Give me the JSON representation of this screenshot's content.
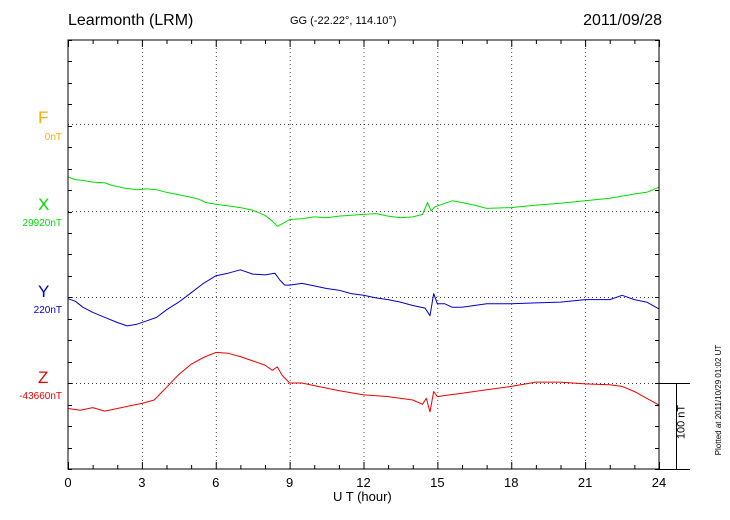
{
  "header": {
    "station": "Learmonth (LRM)",
    "coords": "GG (-22.22°, 114.10°)",
    "date": "2011/09/28"
  },
  "footnote": "Plotted at 2011/10/29 01:02 UT",
  "scale_bar_label": "100 nT",
  "colors": {
    "F": "#ffaa00",
    "X": "#00dd00",
    "Y": "#0000cc",
    "Z": "#ee0000",
    "grid": "#000000"
  },
  "chart_data": {
    "type": "line",
    "title": "Learmonth (LRM)",
    "xlabel": "U T (hour)",
    "ylabel": "",
    "xlim": [
      0,
      24
    ],
    "x_ticks": [
      0,
      3,
      6,
      9,
      12,
      15,
      18,
      21,
      24
    ],
    "x_tick_labels": [
      "0",
      "3",
      "6",
      "9",
      "12",
      "15",
      "18",
      "21",
      "24"
    ],
    "grid": true,
    "scale_bar_nT": 100,
    "series": [
      {
        "name": "F",
        "baseline_label": "0nT",
        "baseline_nT": 0,
        "values": []
      },
      {
        "name": "X",
        "baseline_label": "29920nT",
        "baseline_nT": 29920,
        "x": [
          0,
          0.3,
          0.6,
          1.0,
          1.5,
          1.8,
          2.3,
          2.8,
          3.2,
          3.6,
          4.0,
          4.5,
          5.0,
          5.3,
          5.6,
          6.0,
          6.5,
          7.0,
          7.5,
          8.0,
          8.3,
          8.5,
          8.7,
          9.0,
          9.5,
          10.0,
          10.5,
          11.0,
          11.5,
          12.0,
          12.5,
          13.0,
          13.5,
          14.0,
          14.4,
          14.6,
          14.75,
          14.9,
          15.2,
          15.6,
          16.0,
          16.5,
          17.0,
          18.0,
          19.0,
          20.0,
          21.0,
          22.0,
          23.0,
          23.5,
          24.0
        ],
        "values": [
          40,
          37,
          36,
          34,
          33,
          30,
          27,
          25,
          26,
          25,
          22,
          19,
          16,
          14,
          10,
          8,
          6,
          4,
          1,
          -5,
          -12,
          -18,
          -15,
          -10,
          -9,
          -7,
          -8,
          -6,
          -5,
          -4,
          -3,
          -6,
          -8,
          -7,
          -4,
          10,
          0,
          5,
          8,
          12,
          10,
          7,
          3,
          4,
          7,
          9,
          12,
          15,
          20,
          22,
          28
        ]
      },
      {
        "name": "Y",
        "baseline_label": "220nT",
        "baseline_nT": 220,
        "x": [
          0,
          0.3,
          0.6,
          1.0,
          1.5,
          2.0,
          2.4,
          2.8,
          3.2,
          3.6,
          4.0,
          4.5,
          5.0,
          5.5,
          6.0,
          6.5,
          7.0,
          7.5,
          8.0,
          8.4,
          8.6,
          8.8,
          9.0,
          9.5,
          10.0,
          10.5,
          11.0,
          11.5,
          12.0,
          12.5,
          13.0,
          13.5,
          14.0,
          14.5,
          14.7,
          14.85,
          15.0,
          15.3,
          15.6,
          16.0,
          16.5,
          17.0,
          18.0,
          19.0,
          20.0,
          21.0,
          22.0,
          22.5,
          23.0,
          23.5,
          24.0
        ],
        "values": [
          -2,
          -5,
          -12,
          -18,
          -24,
          -30,
          -34,
          -32,
          -28,
          -24,
          -15,
          -6,
          5,
          16,
          25,
          28,
          32,
          27,
          26,
          28,
          20,
          14,
          14,
          16,
          13,
          10,
          8,
          4,
          2,
          -1,
          -3,
          -6,
          -10,
          -13,
          -22,
          4,
          -8,
          -8,
          -12,
          -12,
          -10,
          -8,
          -8,
          -7,
          -6,
          -3,
          -3,
          2,
          -3,
          -6,
          -14
        ]
      },
      {
        "name": "Z",
        "baseline_label": "-43660nT",
        "baseline_nT": -43660,
        "x": [
          0,
          0.5,
          1.0,
          1.5,
          2.0,
          2.5,
          3.0,
          3.5,
          4.0,
          4.5,
          5.0,
          5.5,
          6.0,
          6.5,
          7.0,
          7.5,
          8.0,
          8.3,
          8.5,
          8.7,
          9.0,
          9.5,
          10.0,
          11.0,
          12.0,
          13.0,
          14.0,
          14.4,
          14.55,
          14.7,
          14.85,
          15.0,
          15.5,
          16.0,
          17.0,
          18.0,
          19.0,
          20.0,
          21.0,
          22.0,
          22.5,
          23.0,
          23.5,
          24.0
        ],
        "values": [
          -30,
          -32,
          -29,
          -33,
          -30,
          -27,
          -24,
          -20,
          -5,
          10,
          22,
          30,
          36,
          35,
          31,
          26,
          21,
          15,
          19,
          9,
          0,
          0,
          -3,
          -9,
          -14,
          -16,
          -20,
          -25,
          -18,
          -34,
          -10,
          -16,
          -14,
          -12,
          -8,
          -4,
          1,
          1,
          -1,
          -2,
          -4,
          -10,
          -18,
          -26
        ]
      }
    ]
  }
}
